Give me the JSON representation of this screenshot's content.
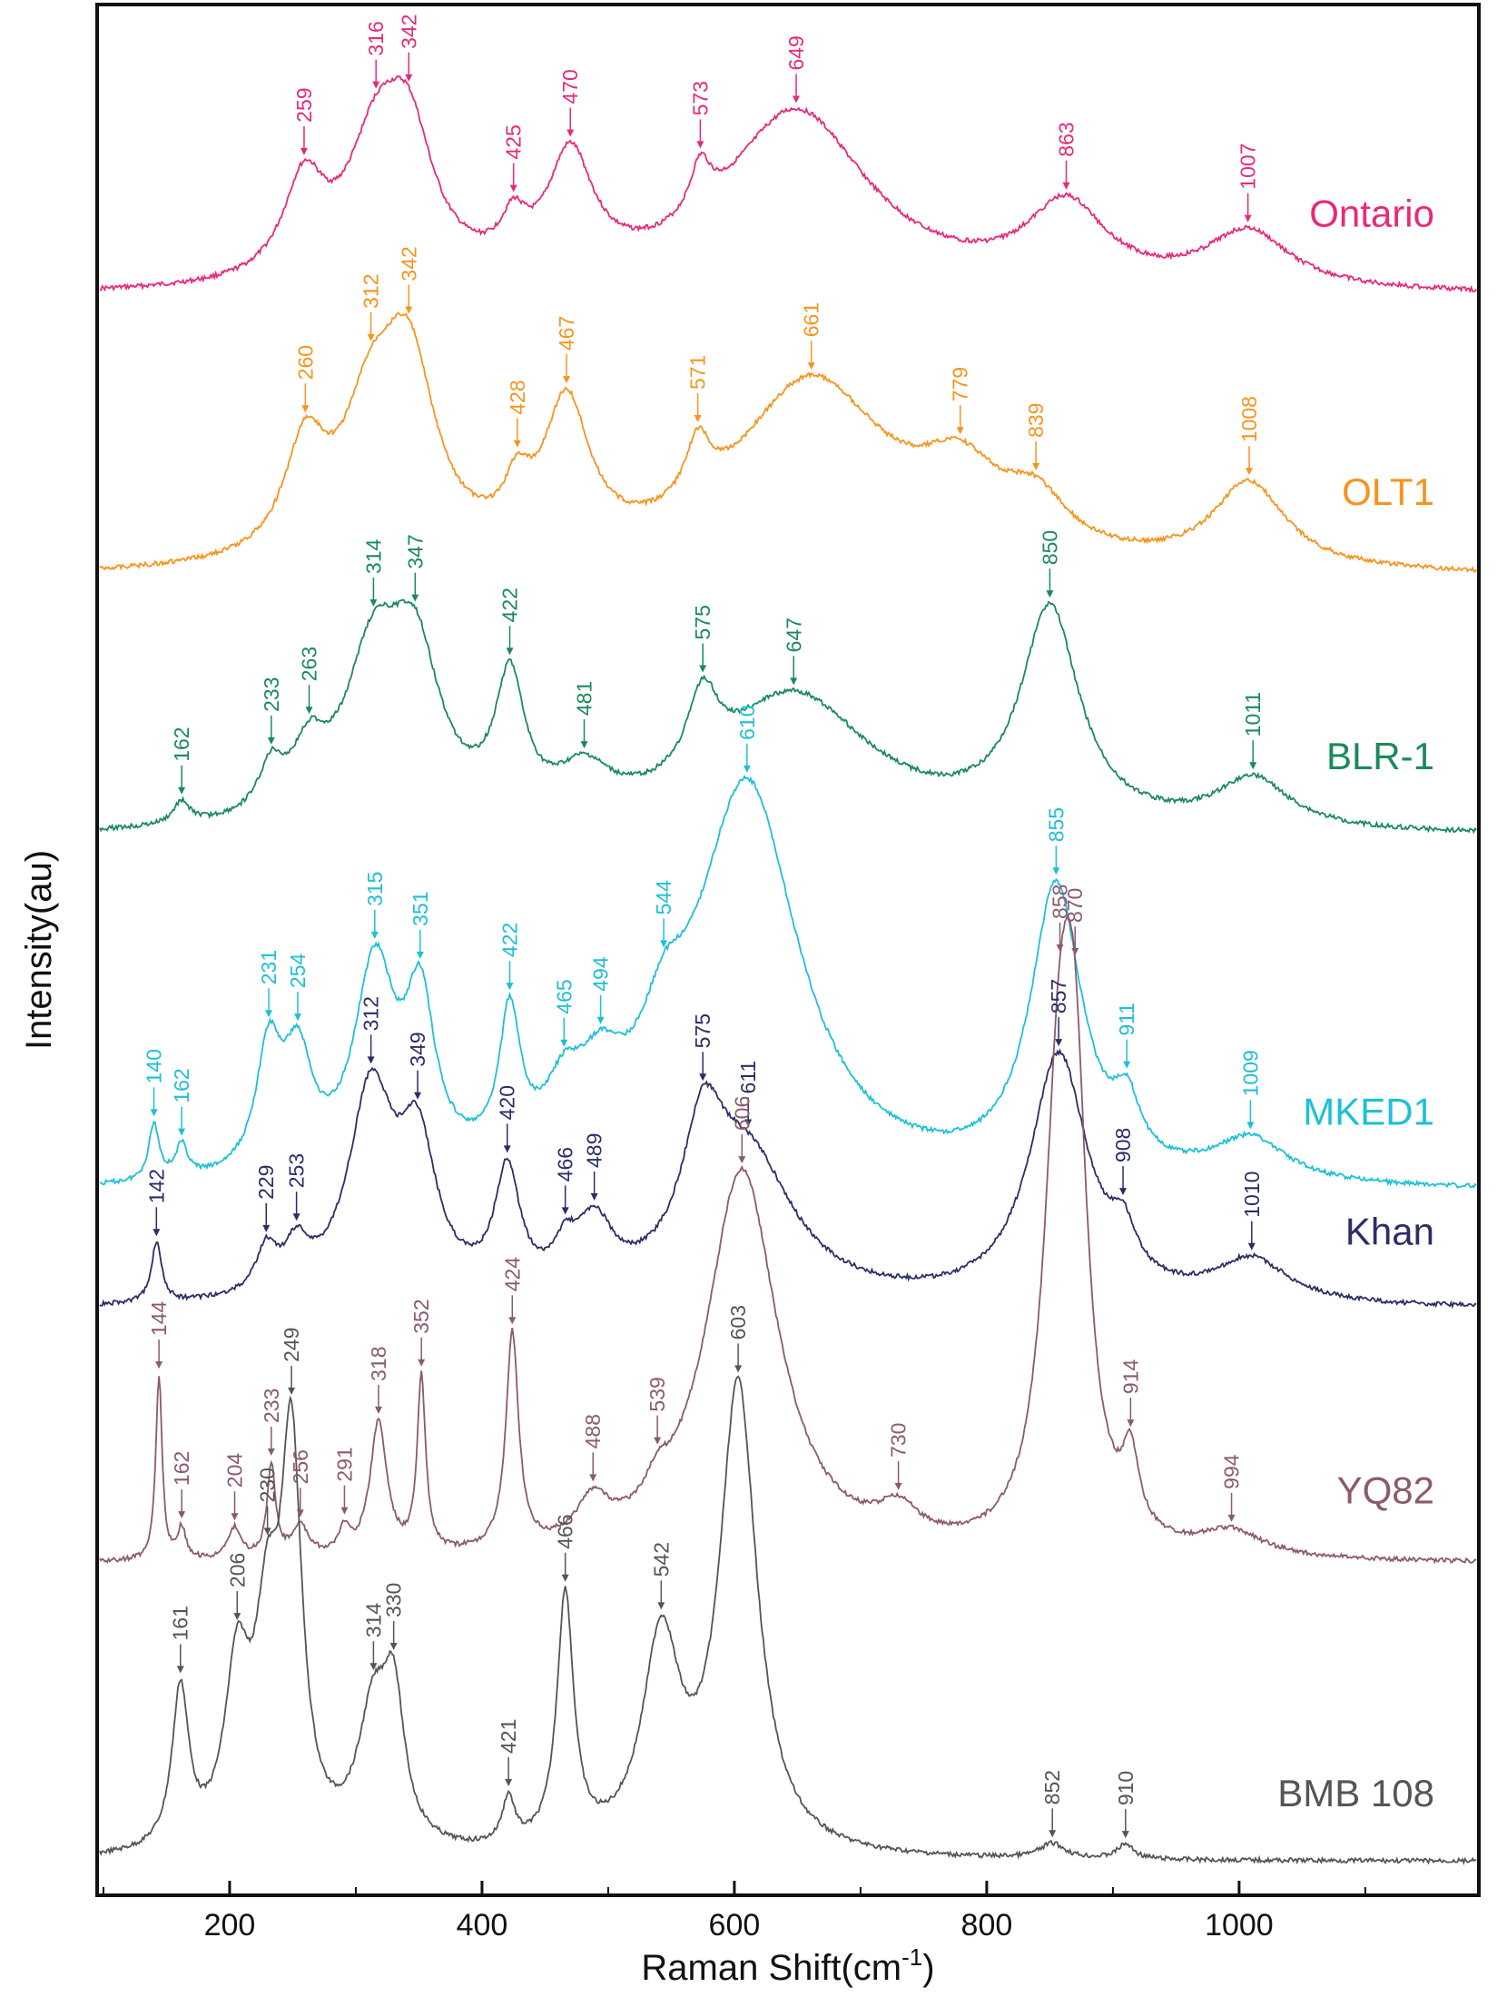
{
  "chart_data": {
    "type": "line",
    "title": "",
    "xlabel": "Raman Shift(cm",
    "xlabel_sup": "-1",
    "xlabel_end": ")",
    "ylabel": "Intensity(au)",
    "xlim": [
      95,
      1190
    ],
    "xticks": [
      200,
      400,
      600,
      800,
      1000
    ],
    "grid": false,
    "legend": "inline labels at right of each trace",
    "series": [
      {
        "name": "Ontario",
        "color": "#e8297a",
        "baseline": 1.4,
        "offset": 6.95,
        "scale": 2.3,
        "peaks": [
          {
            "c": 259,
            "h": 0.42,
            "w": 20
          },
          {
            "c": 316,
            "h": 0.55,
            "w": 28
          },
          {
            "c": 342,
            "h": 0.55,
            "w": 24
          },
          {
            "c": 425,
            "h": 0.18,
            "w": 12
          },
          {
            "c": 470,
            "h": 0.52,
            "w": 22
          },
          {
            "c": 573,
            "h": 0.22,
            "w": 10
          },
          {
            "c": 649,
            "h": 0.8,
            "w": 70
          },
          {
            "c": 863,
            "h": 0.35,
            "w": 38
          },
          {
            "c": 1007,
            "h": 0.25,
            "w": 40
          }
        ],
        "labels": [
          {
            "x": 259,
            "text": "259"
          },
          {
            "x": 316,
            "text": "316"
          },
          {
            "x": 342,
            "text": "342"
          },
          {
            "x": 425,
            "text": "425"
          },
          {
            "x": 470,
            "text": "470"
          },
          {
            "x": 573,
            "text": "573"
          },
          {
            "x": 649,
            "text": "649"
          },
          {
            "x": 863,
            "text": "863"
          },
          {
            "x": 1007,
            "text": "1007"
          }
        ]
      },
      {
        "name": "OLT1",
        "color": "#f7941d",
        "baseline": 1.6,
        "offset": 5.7,
        "scale": 2.4,
        "peaks": [
          {
            "c": 260,
            "h": 0.45,
            "w": 20
          },
          {
            "c": 312,
            "h": 0.55,
            "w": 28
          },
          {
            "c": 342,
            "h": 0.75,
            "w": 26
          },
          {
            "c": 428,
            "h": 0.2,
            "w": 12
          },
          {
            "c": 467,
            "h": 0.62,
            "w": 22
          },
          {
            "c": 571,
            "h": 0.25,
            "w": 12
          },
          {
            "c": 661,
            "h": 0.8,
            "w": 75
          },
          {
            "c": 779,
            "h": 0.3,
            "w": 40
          },
          {
            "c": 839,
            "h": 0.2,
            "w": 30
          },
          {
            "c": 1008,
            "h": 0.36,
            "w": 35
          }
        ],
        "labels": [
          {
            "x": 260,
            "text": "260"
          },
          {
            "x": 312,
            "text": "312"
          },
          {
            "x": 342,
            "text": "342"
          },
          {
            "x": 428,
            "text": "428"
          },
          {
            "x": 467,
            "text": "467"
          },
          {
            "x": 571,
            "text": "571"
          },
          {
            "x": 661,
            "text": "661"
          },
          {
            "x": 779,
            "text": "779"
          },
          {
            "x": 839,
            "text": "839"
          },
          {
            "x": 1008,
            "text": "1008"
          }
        ]
      },
      {
        "name": "BLR-1",
        "color": "#1a8a5a",
        "baseline": 1.5,
        "offset": 4.55,
        "scale": 2.3,
        "peaks": [
          {
            "c": 162,
            "h": 0.1,
            "w": 8
          },
          {
            "c": 233,
            "h": 0.2,
            "w": 12
          },
          {
            "c": 263,
            "h": 0.25,
            "w": 16
          },
          {
            "c": 314,
            "h": 0.7,
            "w": 28
          },
          {
            "c": 347,
            "h": 0.65,
            "w": 24
          },
          {
            "c": 422,
            "h": 0.58,
            "w": 14
          },
          {
            "c": 481,
            "h": 0.18,
            "w": 25
          },
          {
            "c": 575,
            "h": 0.35,
            "w": 15
          },
          {
            "c": 647,
            "h": 0.6,
            "w": 75
          },
          {
            "c": 850,
            "h": 0.95,
            "w": 28
          },
          {
            "c": 1011,
            "h": 0.22,
            "w": 35
          }
        ],
        "labels": [
          {
            "x": 162,
            "text": "162"
          },
          {
            "x": 233,
            "text": "233"
          },
          {
            "x": 263,
            "text": "263"
          },
          {
            "x": 314,
            "text": "314"
          },
          {
            "x": 347,
            "text": "347"
          },
          {
            "x": 422,
            "text": "422"
          },
          {
            "x": 481,
            "text": "481"
          },
          {
            "x": 575,
            "text": "575"
          },
          {
            "x": 647,
            "text": "647"
          },
          {
            "x": 850,
            "text": "850"
          },
          {
            "x": 1011,
            "text": "1011"
          }
        ]
      },
      {
        "name": "MKED1",
        "color": "#1ec0d6",
        "baseline": 1.5,
        "offset": 2.97,
        "scale": 2.2,
        "peaks": [
          {
            "c": 140,
            "h": 0.26,
            "w": 5
          },
          {
            "c": 162,
            "h": 0.15,
            "w": 6
          },
          {
            "c": 231,
            "h": 0.55,
            "w": 12
          },
          {
            "c": 254,
            "h": 0.5,
            "w": 14
          },
          {
            "c": 315,
            "h": 0.95,
            "w": 20
          },
          {
            "c": 351,
            "h": 0.72,
            "w": 14
          },
          {
            "c": 422,
            "h": 0.65,
            "w": 10
          },
          {
            "c": 465,
            "h": 0.25,
            "w": 18
          },
          {
            "c": 494,
            "h": 0.3,
            "w": 22
          },
          {
            "c": 544,
            "h": 0.35,
            "w": 22
          },
          {
            "c": 610,
            "h": 1.85,
            "w": 50
          },
          {
            "c": 855,
            "h": 1.35,
            "w": 25
          },
          {
            "c": 911,
            "h": 0.25,
            "w": 12
          },
          {
            "c": 1009,
            "h": 0.2,
            "w": 35
          }
        ],
        "labels": [
          {
            "x": 140,
            "text": "140"
          },
          {
            "x": 162,
            "text": "162"
          },
          {
            "x": 231,
            "text": "231"
          },
          {
            "x": 254,
            "text": "254"
          },
          {
            "x": 315,
            "text": "315"
          },
          {
            "x": 351,
            "text": "351"
          },
          {
            "x": 422,
            "text": "422"
          },
          {
            "x": 465,
            "text": "465"
          },
          {
            "x": 494,
            "text": "494"
          },
          {
            "x": 544,
            "text": "544"
          },
          {
            "x": 610,
            "text": "610"
          },
          {
            "x": 855,
            "text": "855"
          },
          {
            "x": 911,
            "text": "911"
          },
          {
            "x": 1009,
            "text": "1009"
          }
        ]
      },
      {
        "name": "Khan",
        "color": "#2a2e66",
        "baseline": 1.5,
        "offset": 2.45,
        "scale": 2.2,
        "peaks": [
          {
            "c": 142,
            "h": 0.28,
            "w": 5
          },
          {
            "c": 229,
            "h": 0.2,
            "w": 10
          },
          {
            "c": 253,
            "h": 0.2,
            "w": 12
          },
          {
            "c": 312,
            "h": 0.95,
            "w": 22
          },
          {
            "c": 349,
            "h": 0.65,
            "w": 18
          },
          {
            "c": 420,
            "h": 0.55,
            "w": 12
          },
          {
            "c": 466,
            "h": 0.15,
            "w": 10
          },
          {
            "c": 489,
            "h": 0.3,
            "w": 18
          },
          {
            "c": 575,
            "h": 0.6,
            "w": 20
          },
          {
            "c": 611,
            "h": 0.65,
            "w": 45
          },
          {
            "c": 857,
            "h": 1.15,
            "w": 28
          },
          {
            "c": 908,
            "h": 0.2,
            "w": 12
          },
          {
            "c": 1010,
            "h": 0.2,
            "w": 35
          }
        ],
        "labels": [
          {
            "x": 142,
            "text": "142"
          },
          {
            "x": 229,
            "text": "229"
          },
          {
            "x": 253,
            "text": "253"
          },
          {
            "x": 312,
            "text": "312"
          },
          {
            "x": 349,
            "text": "349"
          },
          {
            "x": 420,
            "text": "420"
          },
          {
            "x": 466,
            "text": "466"
          },
          {
            "x": 489,
            "text": "489"
          },
          {
            "x": 575,
            "text": "575"
          },
          {
            "x": 611,
            "text": "611"
          },
          {
            "x": 857,
            "text": "857"
          },
          {
            "x": 908,
            "text": "908"
          },
          {
            "x": 1010,
            "text": "1010"
          }
        ]
      },
      {
        "name": "YQ82",
        "color": "#8a5a6e",
        "baseline": 1.5,
        "offset": 1.32,
        "scale": 2.1,
        "peaks": [
          {
            "c": 144,
            "h": 0.9,
            "w": 3
          },
          {
            "c": 162,
            "h": 0.15,
            "w": 4
          },
          {
            "c": 204,
            "h": 0.15,
            "w": 6
          },
          {
            "c": 233,
            "h": 0.45,
            "w": 4
          },
          {
            "c": 256,
            "h": 0.15,
            "w": 8
          },
          {
            "c": 291,
            "h": 0.12,
            "w": 5
          },
          {
            "c": 318,
            "h": 0.65,
            "w": 8
          },
          {
            "c": 352,
            "h": 0.85,
            "w": 4
          },
          {
            "c": 424,
            "h": 1.05,
            "w": 6
          },
          {
            "c": 488,
            "h": 0.2,
            "w": 15
          },
          {
            "c": 539,
            "h": 0.12,
            "w": 10
          },
          {
            "c": 606,
            "h": 1.9,
            "w": 35
          },
          {
            "c": 730,
            "h": 0.15,
            "w": 20
          },
          {
            "c": 858,
            "h": 2.1,
            "w": 15
          },
          {
            "c": 870,
            "h": 1.6,
            "w": 12
          },
          {
            "c": 914,
            "h": 0.35,
            "w": 8
          },
          {
            "c": 994,
            "h": 0.12,
            "w": 30
          }
        ],
        "labels": [
          {
            "x": 144,
            "text": "144"
          },
          {
            "x": 162,
            "text": "162"
          },
          {
            "x": 204,
            "text": "204"
          },
          {
            "x": 233,
            "text": "233"
          },
          {
            "x": 256,
            "text": "256"
          },
          {
            "x": 291,
            "text": "291"
          },
          {
            "x": 318,
            "text": "318"
          },
          {
            "x": 352,
            "text": "352"
          },
          {
            "x": 424,
            "text": "424"
          },
          {
            "x": 488,
            "text": "488"
          },
          {
            "x": 539,
            "text": "539"
          },
          {
            "x": 606,
            "text": "606"
          },
          {
            "x": 730,
            "text": "730"
          },
          {
            "x": 858,
            "text": "858"
          },
          {
            "x": 870,
            "text": "870"
          },
          {
            "x": 914,
            "text": "914"
          },
          {
            "x": 994,
            "text": "994"
          }
        ]
      },
      {
        "name": "BMB 108",
        "color": "#555555",
        "baseline": 1.5,
        "offset": 0.0,
        "scale": 1.9,
        "peaks": [
          {
            "c": 161,
            "h": 0.85,
            "w": 8
          },
          {
            "c": 206,
            "h": 0.9,
            "w": 12
          },
          {
            "c": 230,
            "h": 1.05,
            "w": 12
          },
          {
            "c": 249,
            "h": 2.05,
            "w": 10
          },
          {
            "c": 314,
            "h": 0.7,
            "w": 15
          },
          {
            "c": 330,
            "h": 0.7,
            "w": 10
          },
          {
            "c": 421,
            "h": 0.25,
            "w": 6
          },
          {
            "c": 466,
            "h": 1.35,
            "w": 8
          },
          {
            "c": 542,
            "h": 1.1,
            "w": 18
          },
          {
            "c": 603,
            "h": 2.5,
            "w": 18
          },
          {
            "c": 852,
            "h": 0.08,
            "w": 12
          },
          {
            "c": 910,
            "h": 0.08,
            "w": 8
          }
        ],
        "labels": [
          {
            "x": 161,
            "text": "161"
          },
          {
            "x": 206,
            "text": "206"
          },
          {
            "x": 230,
            "text": "230"
          },
          {
            "x": 249,
            "text": "249"
          },
          {
            "x": 314,
            "text": "314"
          },
          {
            "x": 330,
            "text": "330"
          },
          {
            "x": 421,
            "text": "421"
          },
          {
            "x": 466,
            "text": "466"
          },
          {
            "x": 542,
            "text": "542"
          },
          {
            "x": 603,
            "text": "603"
          },
          {
            "x": 852,
            "text": "852"
          },
          {
            "x": 910,
            "text": "910"
          }
        ]
      }
    ]
  }
}
